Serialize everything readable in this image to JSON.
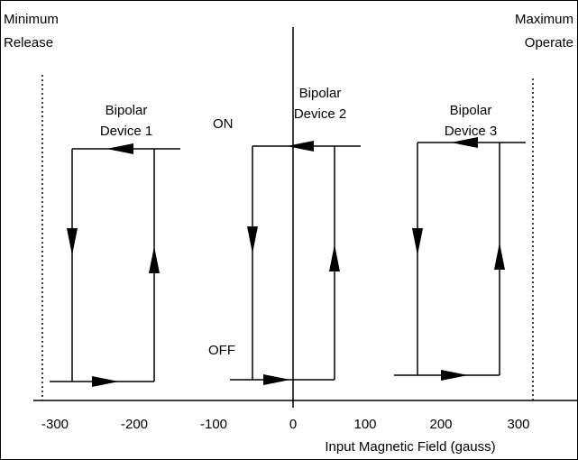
{
  "labels": {
    "min_line1": "Minimum",
    "min_line2": "Release",
    "max_line1": "Maximum",
    "max_line2": "Operate",
    "on": "ON",
    "off": "OFF",
    "x_axis_title": "Input Magnetic Field (gauss)"
  },
  "devices": [
    {
      "line1": "Bipolar",
      "line2": "Device 1",
      "release_gauss": -270,
      "operate_gauss": -180
    },
    {
      "line1": "Bipolar",
      "line2": "Device 2",
      "release_gauss": -50,
      "operate_gauss": 50
    },
    {
      "line1": "Bipolar",
      "line2": "Device 3",
      "release_gauss": 160,
      "operate_gauss": 270
    }
  ],
  "limits": {
    "minimum_release_gauss": -330,
    "maximum_operate_gauss": 330
  },
  "x_ticks": [
    "-300",
    "-200",
    "-100",
    "0",
    "100",
    "200",
    "300"
  ],
  "colors": {
    "line": "#000000",
    "background": "#ffffff"
  }
}
